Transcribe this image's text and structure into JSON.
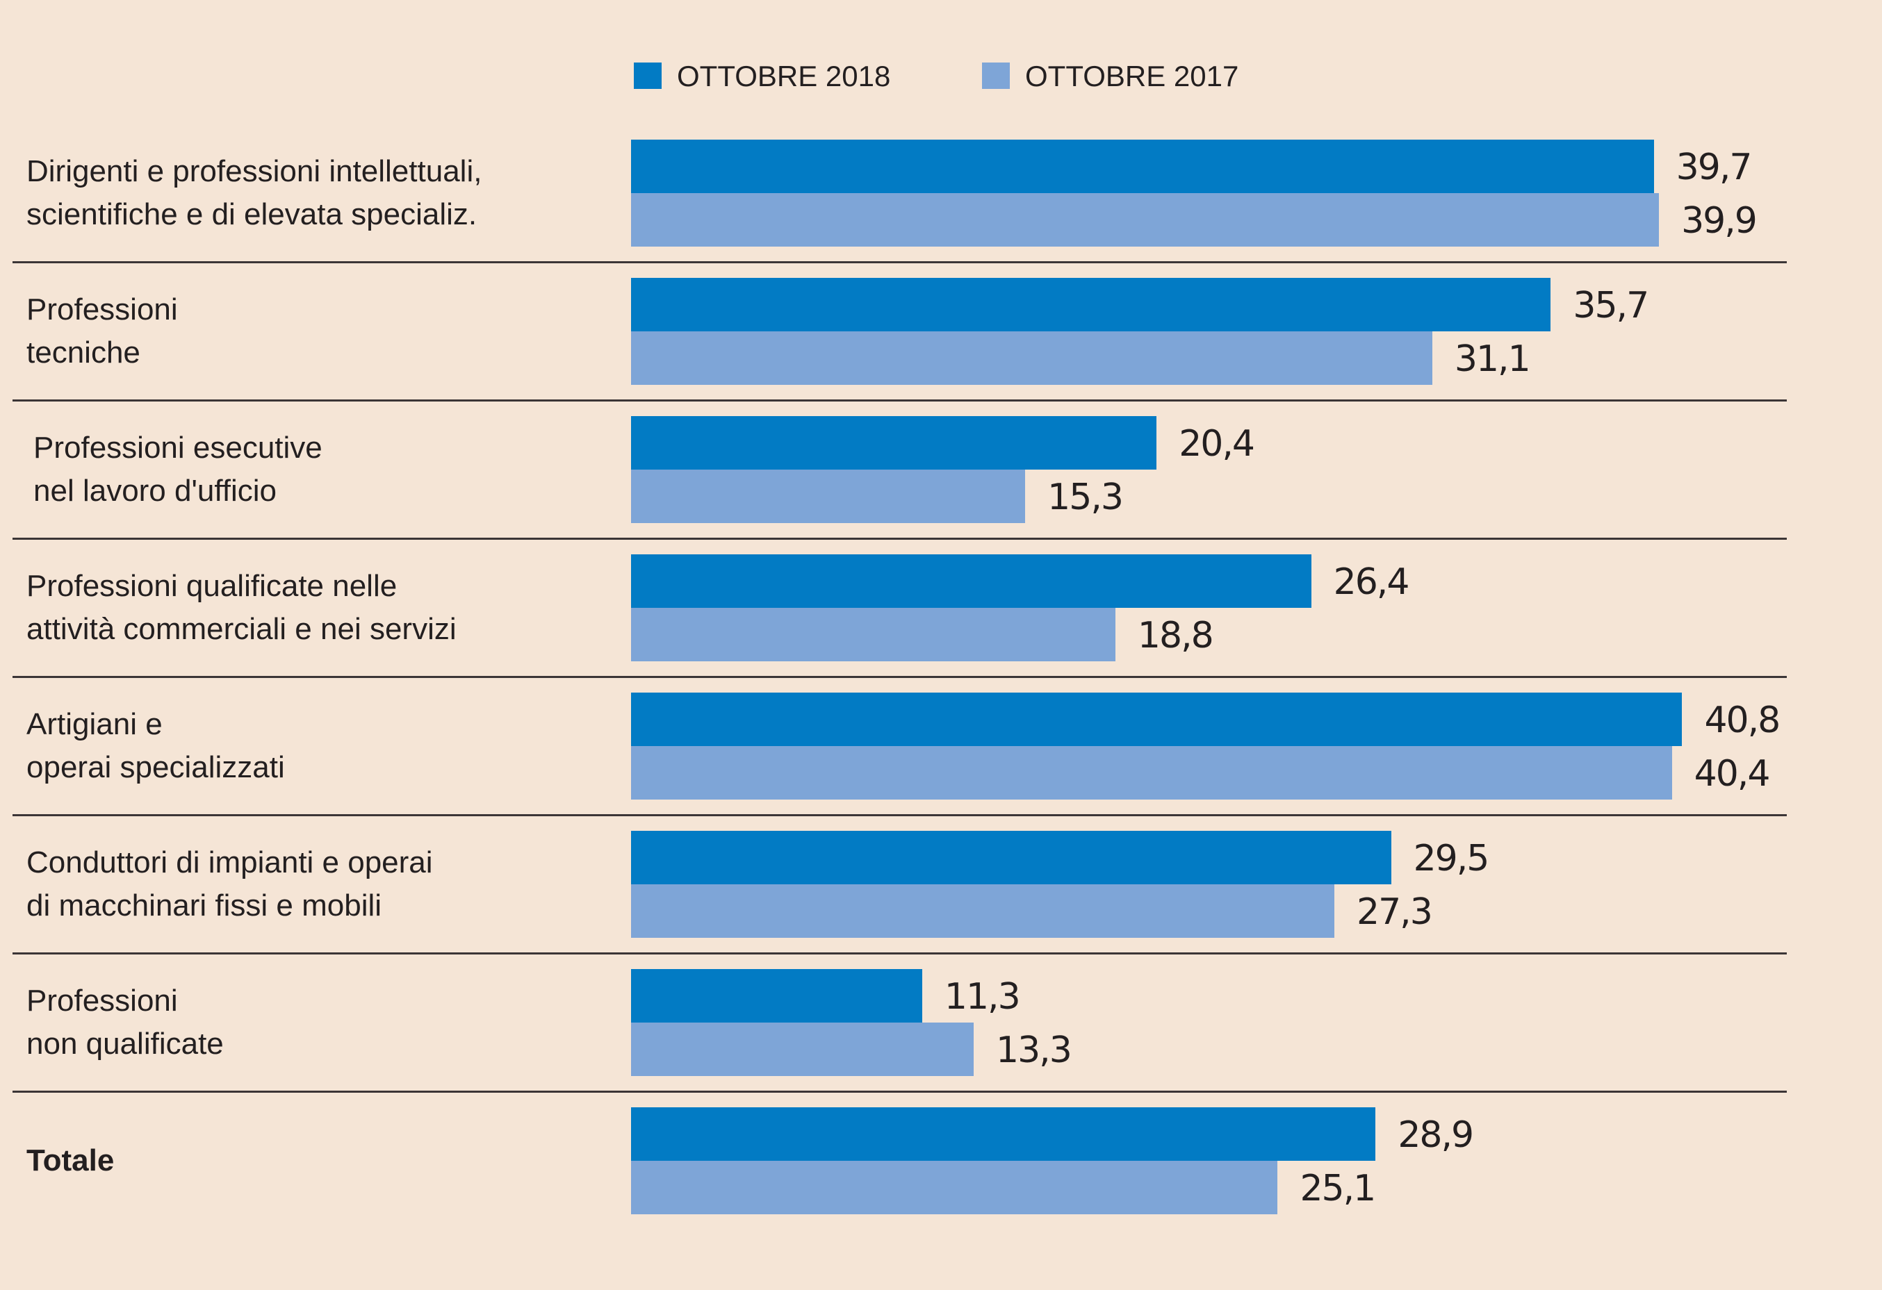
{
  "chart_data": {
    "type": "bar",
    "orientation": "horizontal",
    "title": "",
    "xlabel": "",
    "ylabel": "",
    "grid": false,
    "legend_position": "top",
    "decimal_separator": ",",
    "categories": [
      "Dirigenti e professioni intellettuali,\nscientifiche e di elevata specializ.",
      "Professioni\ntecniche",
      "Professioni esecutive\nnel lavoro d'ufficio",
      "Professioni qualificate nelle\nattività commerciali e nei servizi",
      "Artigiani e\noperai specializzati",
      "Conduttori di impianti e operai\ndi macchinari fissi e mobili",
      "Professioni\nnon qualificate",
      "Totale"
    ],
    "bold_categories": [
      "Totale"
    ],
    "series": [
      {
        "name": "OTTOBRE 2018",
        "color": "#027bc4",
        "values": [
          39.7,
          35.7,
          20.4,
          26.4,
          40.8,
          29.5,
          11.3,
          28.9
        ],
        "labels": [
          "39,7",
          "35,7",
          "20,4",
          "26,4",
          "40,8",
          "29,5",
          "11,3",
          "28,9"
        ]
      },
      {
        "name": "OTTOBRE 2017",
        "color": "#7ea5d7",
        "values": [
          39.9,
          31.1,
          15.3,
          18.8,
          40.4,
          27.3,
          13.3,
          25.1
        ],
        "labels": [
          "39,9",
          "31,1",
          "15,3",
          "18,8",
          "40,4",
          "27,3",
          "13,3",
          "25,1"
        ]
      }
    ],
    "xlim": [
      0,
      44
    ]
  },
  "colors": {
    "background": "#f5e5d6",
    "text": "#231f20",
    "divider": "#3b3536"
  }
}
